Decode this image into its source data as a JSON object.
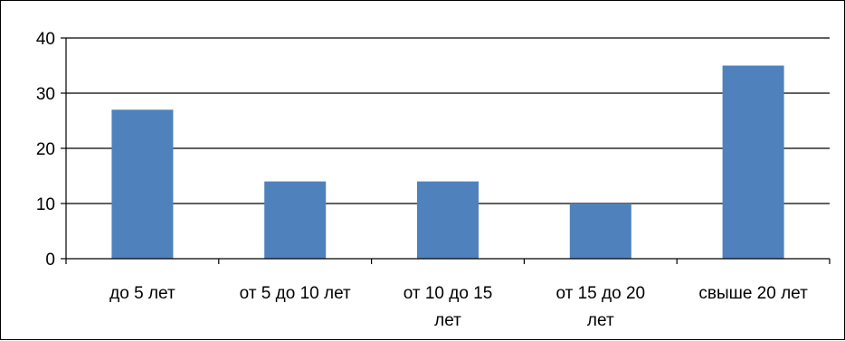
{
  "chart_data": {
    "type": "bar",
    "title": "",
    "xlabel": "",
    "ylabel": "",
    "categories": [
      [
        "до 5 лет"
      ],
      [
        "от 5 до 10 лет"
      ],
      [
        "от 10 до 15",
        "лет"
      ],
      [
        "от 15 до 20",
        "лет"
      ],
      [
        "свыше 20 лет"
      ]
    ],
    "values": [
      27,
      14,
      14,
      10,
      35
    ],
    "ylim": [
      0,
      40
    ],
    "yticks": [
      0,
      10,
      20,
      30,
      40
    ],
    "grid": true,
    "legend": "none",
    "bar_color": "#4F81BD",
    "grid_color": "#000000"
  }
}
